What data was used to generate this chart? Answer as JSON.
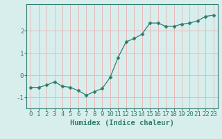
{
  "x": [
    0,
    1,
    2,
    3,
    4,
    5,
    6,
    7,
    8,
    9,
    10,
    11,
    12,
    13,
    14,
    15,
    16,
    17,
    18,
    19,
    20,
    21,
    22,
    23
  ],
  "y": [
    -0.55,
    -0.55,
    -0.45,
    -0.3,
    -0.5,
    -0.55,
    -0.7,
    -0.9,
    -0.75,
    -0.6,
    -0.1,
    0.8,
    1.5,
    1.65,
    1.85,
    2.35,
    2.35,
    2.2,
    2.2,
    2.3,
    2.35,
    2.45,
    2.65,
    2.7
  ],
  "xlabel": "Humidex (Indice chaleur)",
  "ylim": [
    -1.5,
    3.2
  ],
  "xlim": [
    -0.5,
    23.5
  ],
  "yticks": [
    -1,
    0,
    1,
    2
  ],
  "xtick_labels": [
    "0",
    "1",
    "2",
    "3",
    "4",
    "5",
    "6",
    "7",
    "8",
    "9",
    "10",
    "11",
    "12",
    "13",
    "14",
    "15",
    "16",
    "17",
    "18",
    "19",
    "20",
    "21",
    "22",
    "23"
  ],
  "line_color": "#2e7d6e",
  "marker": "D",
  "marker_size": 2.5,
  "bg_color": "#d8eeed",
  "grid_color": "#e8b8b8",
  "axis_color": "#2e7d6e",
  "xlabel_fontsize": 7.5,
  "tick_fontsize": 6.5
}
